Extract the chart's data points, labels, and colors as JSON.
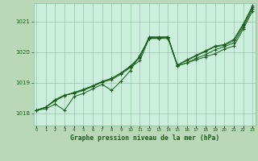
{
  "background_color": "#b8d8b8",
  "plot_bg_color": "#cceedd",
  "grid_color": "#88bb99",
  "line_color": "#1a5c1a",
  "marker_color": "#1a5c1a",
  "title": "Graphe pression niveau de la mer (hPa)",
  "xlabel_hours": [
    0,
    1,
    2,
    3,
    4,
    5,
    6,
    7,
    8,
    9,
    10,
    11,
    12,
    13,
    14,
    15,
    16,
    17,
    18,
    19,
    20,
    21,
    22,
    23
  ],
  "yticks": [
    1018,
    1019,
    1020,
    1021
  ],
  "ylim": [
    1017.6,
    1021.6
  ],
  "xlim": [
    -0.3,
    23.3
  ],
  "series": [
    [
      1018.1,
      1018.15,
      1018.3,
      1018.1,
      1018.55,
      1018.65,
      1018.8,
      1018.95,
      1018.75,
      1019.05,
      1019.4,
      1019.9,
      1020.45,
      1020.45,
      1020.5,
      1019.55,
      1019.65,
      1019.75,
      1019.85,
      1019.95,
      1020.1,
      1020.2,
      1020.75,
      1021.35
    ],
    [
      1018.1,
      1018.2,
      1018.45,
      1018.6,
      1018.65,
      1018.75,
      1018.88,
      1019.02,
      1019.1,
      1019.28,
      1019.5,
      1019.72,
      1020.45,
      1020.45,
      1020.45,
      1019.55,
      1019.65,
      1019.8,
      1019.92,
      1020.08,
      1020.18,
      1020.3,
      1020.82,
      1021.42
    ],
    [
      1018.1,
      1018.2,
      1018.42,
      1018.58,
      1018.68,
      1018.78,
      1018.9,
      1019.04,
      1019.14,
      1019.32,
      1019.52,
      1019.82,
      1020.48,
      1020.48,
      1020.48,
      1019.58,
      1019.72,
      1019.88,
      1020.02,
      1020.18,
      1020.22,
      1020.38,
      1020.88,
      1021.48
    ],
    [
      1018.1,
      1018.2,
      1018.42,
      1018.58,
      1018.68,
      1018.78,
      1018.9,
      1019.04,
      1019.14,
      1019.32,
      1019.55,
      1019.85,
      1020.5,
      1020.5,
      1020.5,
      1019.58,
      1019.75,
      1019.9,
      1020.05,
      1020.2,
      1020.25,
      1020.42,
      1020.92,
      1021.52
    ]
  ]
}
